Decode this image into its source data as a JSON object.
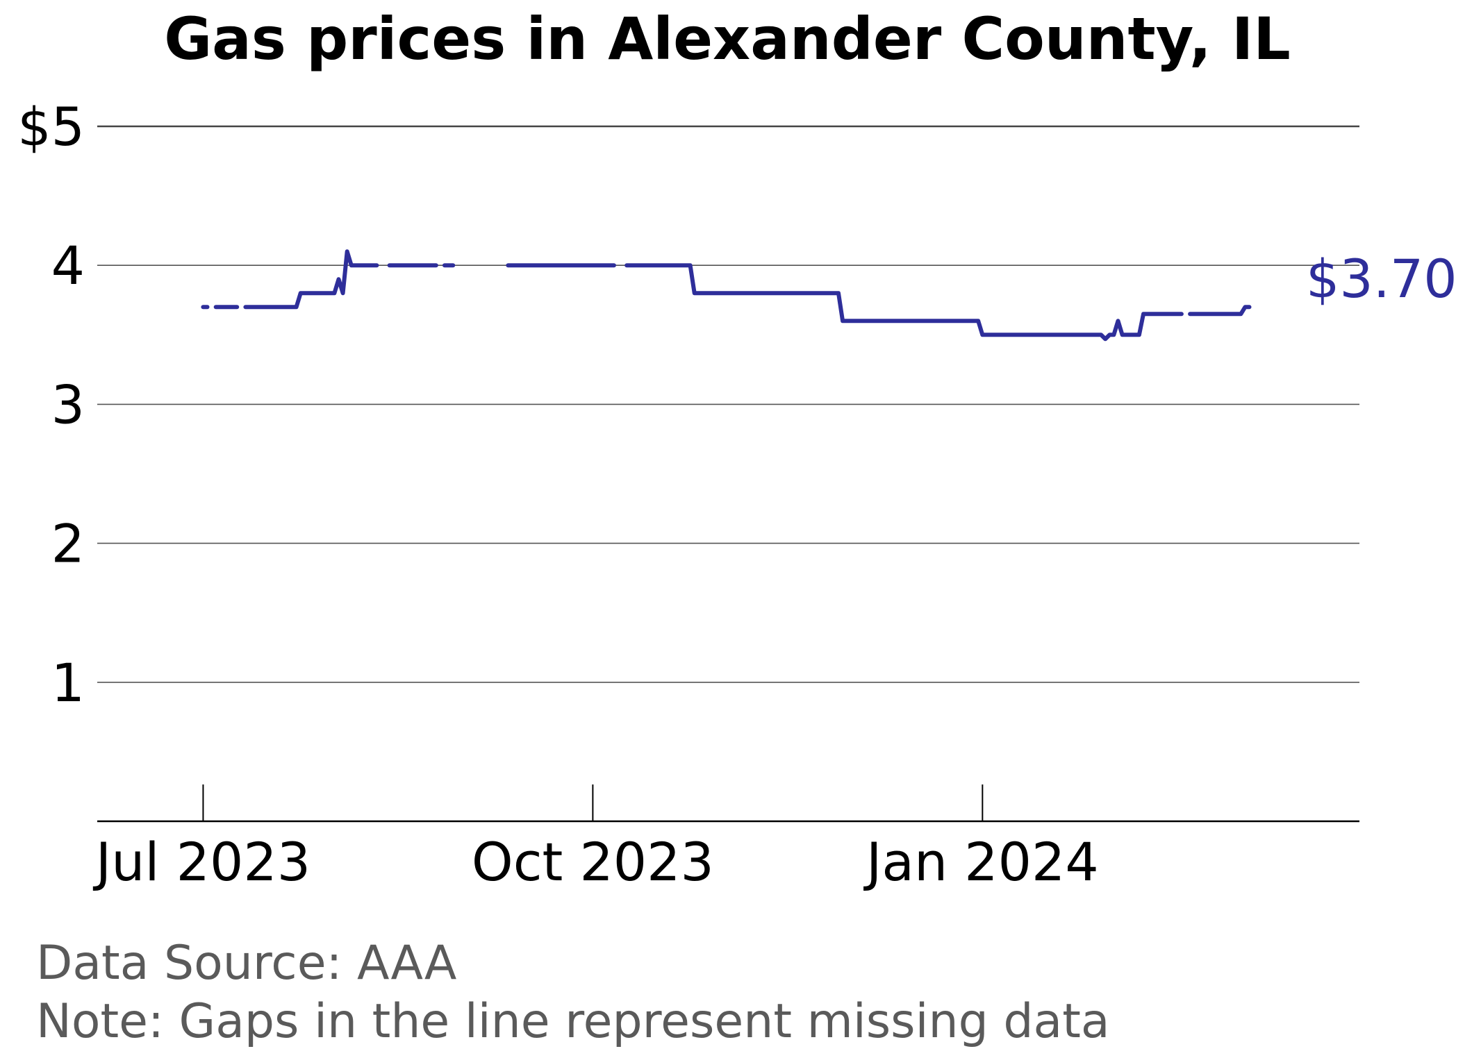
{
  "chart_data": {
    "type": "line",
    "title": "Gas prices in Alexander County, IL",
    "xlabel": "",
    "ylabel": "",
    "ylim": [
      0,
      5
    ],
    "xlim": [
      "2023-06-06",
      "2024-03-30"
    ],
    "yticks": [
      {
        "value": 5,
        "label": "$5"
      },
      {
        "value": 4,
        "label": "4"
      },
      {
        "value": 3,
        "label": "3"
      },
      {
        "value": 2,
        "label": "2"
      },
      {
        "value": 1,
        "label": "1"
      }
    ],
    "xticks": [
      {
        "value": "2023-07-01",
        "label": "Jul 2023"
      },
      {
        "value": "2023-10-01",
        "label": "Oct 2023"
      },
      {
        "value": "2024-01-01",
        "label": "Jan 2024"
      }
    ],
    "grid": true,
    "end_label": "$3.70",
    "series_color": "#2e2e9a",
    "segments": [
      [
        [
          "2023-07-01",
          3.7
        ],
        [
          "2023-07-02",
          3.7
        ]
      ],
      [
        [
          "2023-07-04",
          3.7
        ],
        [
          "2023-07-09",
          3.7
        ]
      ],
      [
        [
          "2023-07-11",
          3.7
        ],
        [
          "2023-07-23",
          3.7
        ],
        [
          "2023-07-24",
          3.8
        ],
        [
          "2023-08-01",
          3.8
        ],
        [
          "2023-08-02",
          3.9
        ],
        [
          "2023-08-03",
          3.8
        ],
        [
          "2023-08-04",
          4.1
        ],
        [
          "2023-08-05",
          4.0
        ],
        [
          "2023-08-11",
          4.0
        ]
      ],
      [
        [
          "2023-08-14",
          4.0
        ],
        [
          "2023-08-25",
          4.0
        ]
      ],
      [
        [
          "2023-08-27",
          4.0
        ],
        [
          "2023-08-29",
          4.0
        ]
      ],
      [
        [
          "2023-09-11",
          4.0
        ],
        [
          "2023-09-17",
          4.0
        ],
        [
          "2023-10-06",
          4.0
        ]
      ],
      [
        [
          "2023-10-09",
          4.0
        ],
        [
          "2023-10-24",
          4.0
        ],
        [
          "2023-10-25",
          3.8
        ],
        [
          "2023-11-28",
          3.8
        ],
        [
          "2023-11-29",
          3.6
        ],
        [
          "2023-12-31",
          3.6
        ],
        [
          "2024-01-01",
          3.5
        ],
        [
          "2024-01-29",
          3.5
        ],
        [
          "2024-01-30",
          3.47
        ],
        [
          "2024-01-31",
          3.5
        ],
        [
          "2024-02-01",
          3.5
        ],
        [
          "2024-02-02",
          3.6
        ],
        [
          "2024-02-03",
          3.5
        ],
        [
          "2024-02-07",
          3.5
        ],
        [
          "2024-02-08",
          3.65
        ],
        [
          "2024-02-17",
          3.65
        ]
      ],
      [
        [
          "2024-02-19",
          3.65
        ],
        [
          "2024-03-02",
          3.65
        ],
        [
          "2024-03-03",
          3.7
        ],
        [
          "2024-03-04",
          3.7
        ]
      ]
    ]
  },
  "footer": {
    "source": "Data Source: AAA",
    "note": "Note: Gaps in the line represent missing data"
  }
}
